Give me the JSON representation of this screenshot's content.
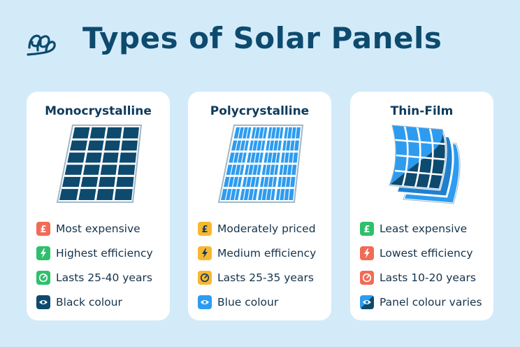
{
  "page": {
    "title": "Types of Solar Panels"
  },
  "colors": {
    "background": "#d3ebf9",
    "title": "#0d4a6e",
    "expensive_red": "#f26b55",
    "efficiency_green": "#2ec06b",
    "moderate_gold": "#f7b731",
    "dark_navy": "#0d4a6e",
    "blue": "#2d9cf0"
  },
  "cards": [
    {
      "name": "Monocrystalline",
      "features": [
        {
          "icon": "pound-icon",
          "color": "#f26b55",
          "text": "Most expensive"
        },
        {
          "icon": "lightning-icon",
          "color": "#2ec06b",
          "text": "Highest efficiency"
        },
        {
          "icon": "clock-icon",
          "color": "#2ec06b",
          "text": "Lasts 25-40 years"
        },
        {
          "icon": "eye-icon",
          "color": "#0d4a6e",
          "text": "Black colour"
        }
      ]
    },
    {
      "name": "Polycrystalline",
      "features": [
        {
          "icon": "pound-icon",
          "color": "#f7b731",
          "text": "Moderately priced"
        },
        {
          "icon": "lightning-icon",
          "color": "#f7b731",
          "text": "Medium efficiency"
        },
        {
          "icon": "clock-icon",
          "color": "#f7b731",
          "text": "Lasts 25-35 years"
        },
        {
          "icon": "eye-icon",
          "color": "#2d9cf0",
          "text": "Blue colour"
        }
      ]
    },
    {
      "name": "Thin-Film",
      "features": [
        {
          "icon": "pound-icon",
          "color": "#2ec06b",
          "text": "Least expensive"
        },
        {
          "icon": "lightning-icon",
          "color": "#f26b55",
          "text": "Lowest efficiency"
        },
        {
          "icon": "clock-icon",
          "color": "#f26b55",
          "text": "Lasts 10-20 years"
        },
        {
          "icon": "eye-icon",
          "color": "#1a7bc4",
          "text": "Panel colour varies"
        }
      ]
    }
  ]
}
